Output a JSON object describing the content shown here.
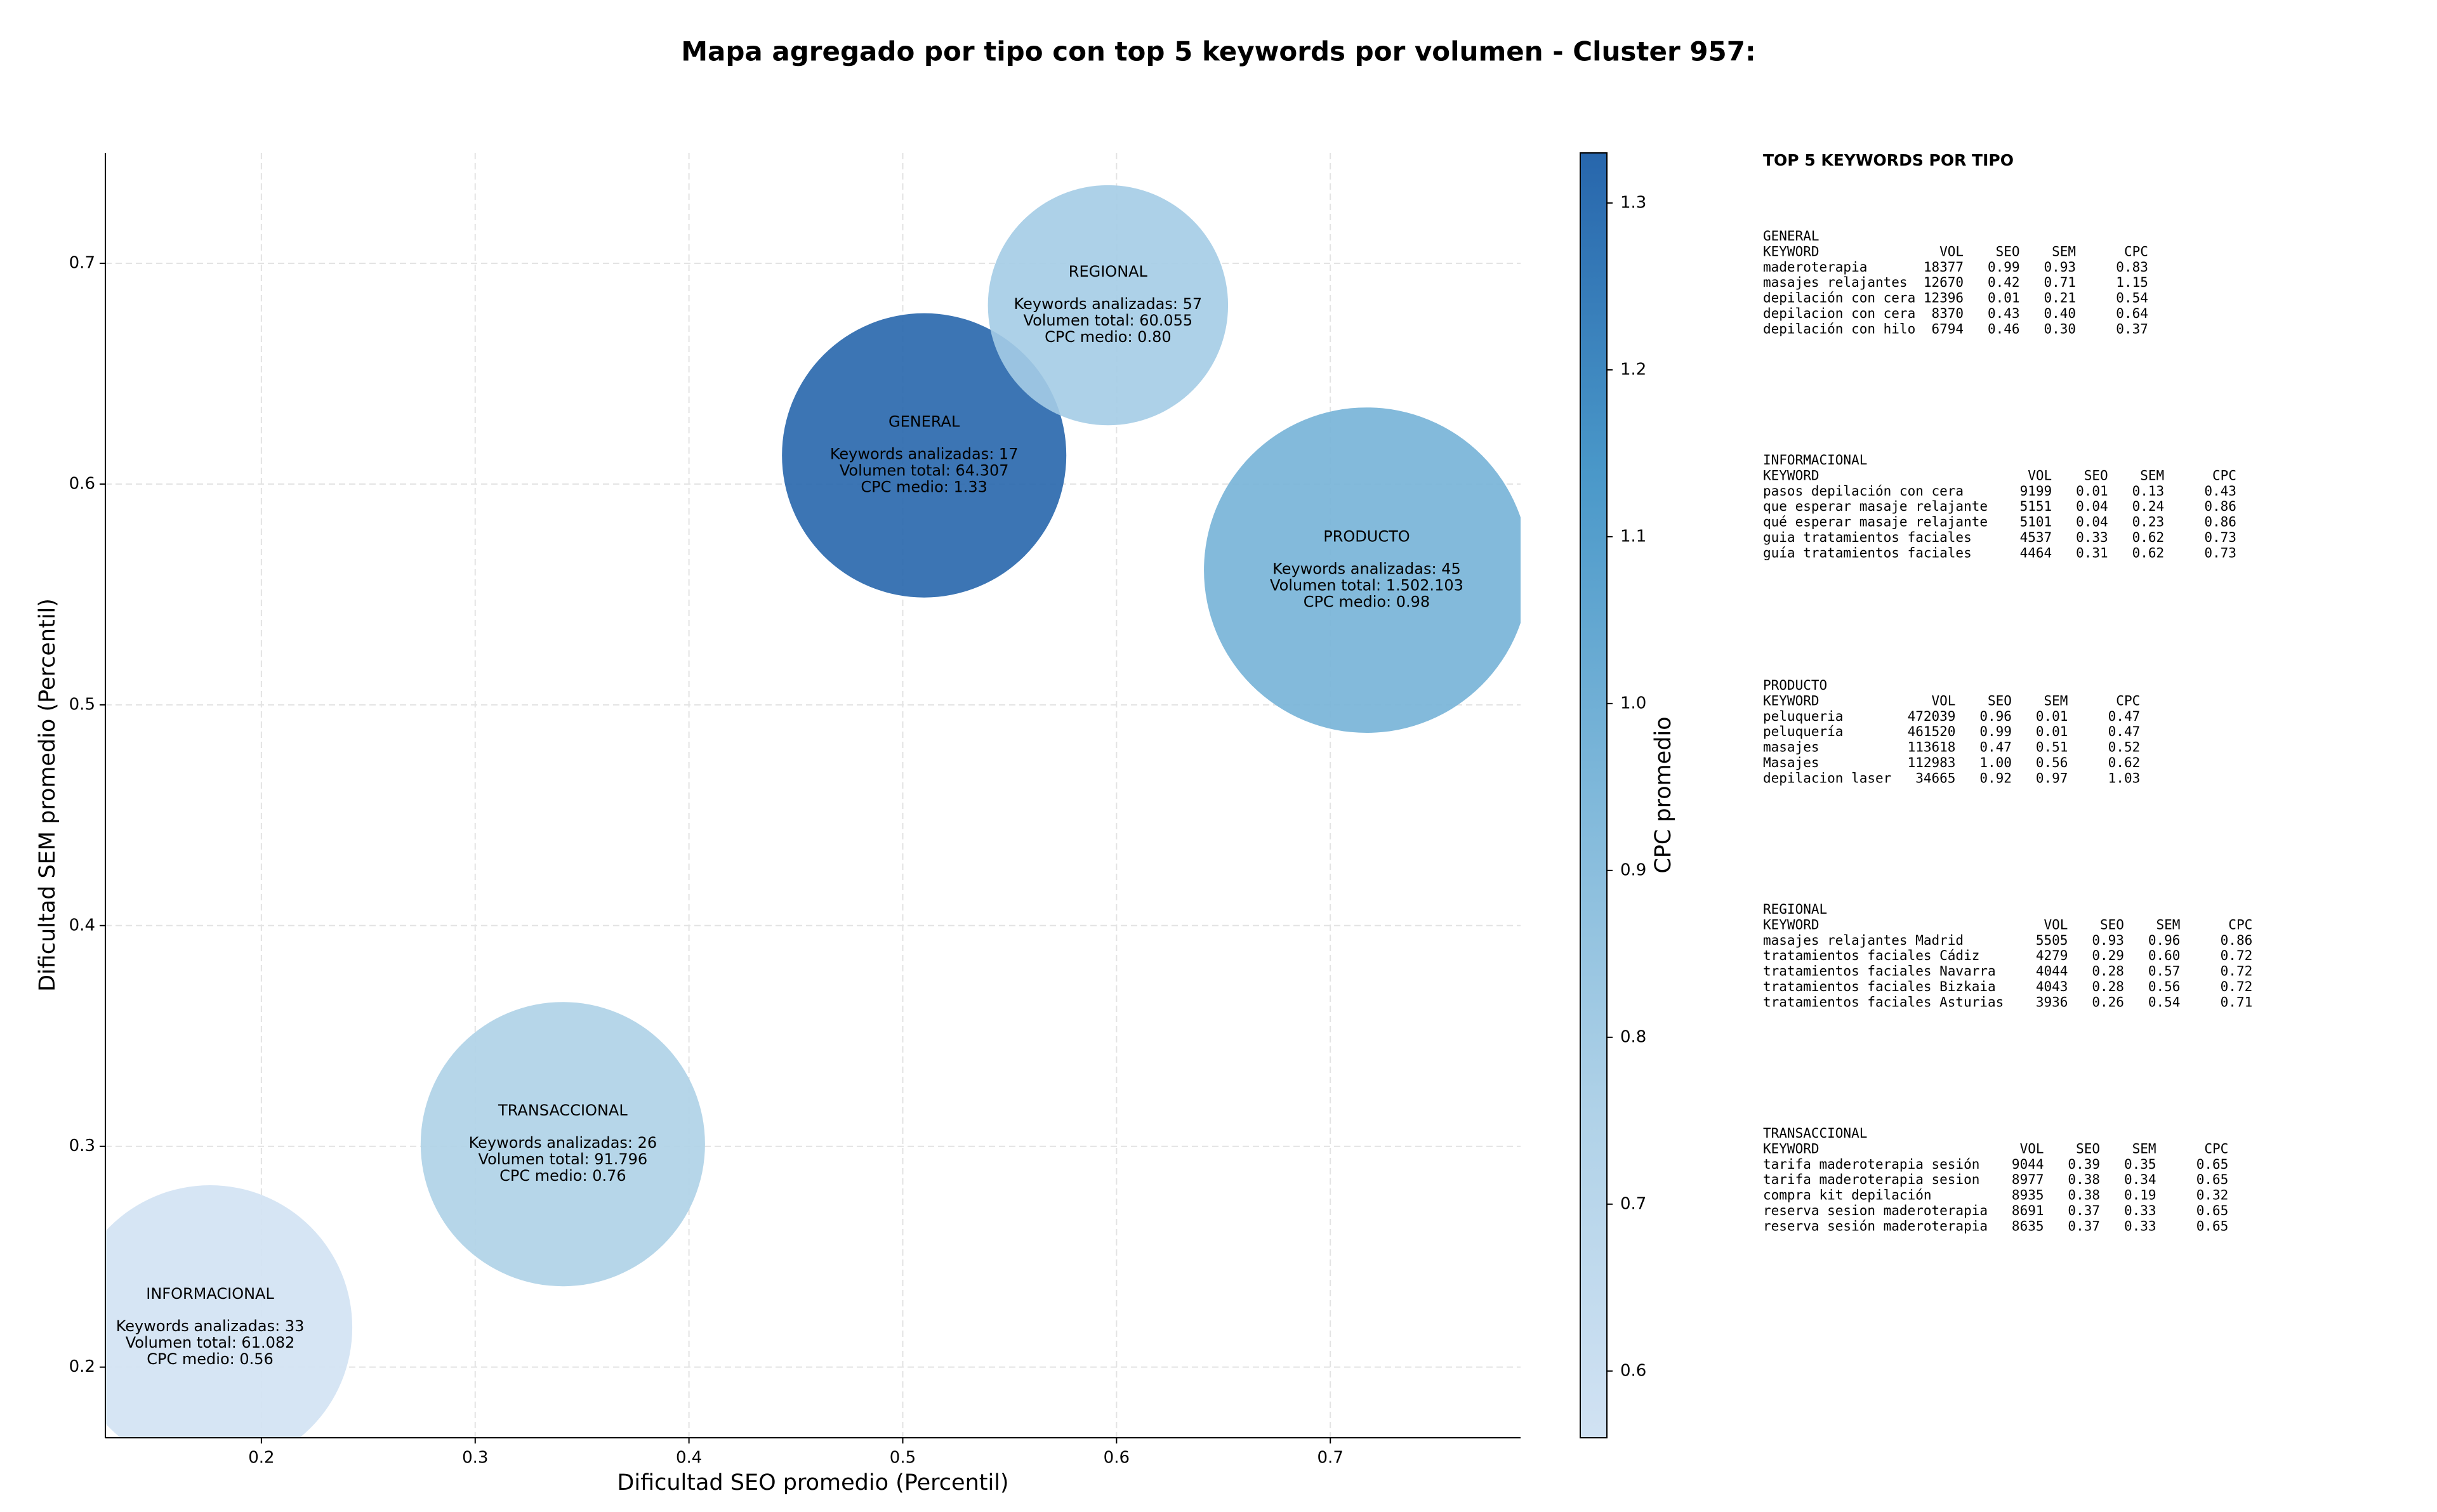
{
  "chart_data": {
    "type": "scatter",
    "title": "Mapa agregado por tipo con top 5 keywords por volumen - Cluster 957:",
    "xlabel": "Dificultad SEO promedio (Percentil)",
    "ylabel": "Dificultad SEM promedio (Percentil)",
    "xlim": [
      0.127,
      0.789
    ],
    "ylim": [
      0.168,
      0.75
    ],
    "xticks": [
      0.2,
      0.3,
      0.4,
      0.5,
      0.6,
      0.7
    ],
    "yticks": [
      0.2,
      0.3,
      0.4,
      0.5,
      0.6,
      0.7
    ],
    "grid": true,
    "point_labels": [
      "GENERAL",
      "REGIONAL",
      "PRODUCTO",
      "TRANSACCIONAL",
      "INFORMACIONAL"
    ],
    "x": [
      0.51,
      0.596,
      0.717,
      0.341,
      0.176
    ],
    "values": [
      0.613,
      0.681,
      0.561,
      0.301,
      0.218
    ],
    "sizes": [
      3000,
      2140,
      3930,
      3000,
      3000
    ],
    "color_values": [
      1.33,
      0.8,
      0.98,
      0.76,
      0.56
    ],
    "annotations": [
      [
        "Keywords analizadas: 17",
        "Volumen total: 64.307",
        "CPC medio: 1.33"
      ],
      [
        "Keywords analizadas: 57",
        "Volumen total: 60.055",
        "CPC medio: 0.80"
      ],
      [
        "Keywords analizadas: 45",
        "Volumen total: 1.502.103",
        "CPC medio: 0.98"
      ],
      [
        "Keywords analizadas: 26",
        "Volumen total: 91.796",
        "CPC medio: 0.76"
      ],
      [
        "Keywords analizadas: 33",
        "Volumen total: 61.082",
        "CPC medio: 0.56"
      ]
    ],
    "colorbar": {
      "label": "CPC promedio",
      "colormap": "Blues",
      "lim": [
        0.56,
        1.33
      ],
      "ticks": [
        0.6,
        0.7,
        0.8,
        0.9,
        {
          "value": 1,
          "label": "1.0"
        },
        1.1,
        1.2,
        1.3
      ]
    }
  },
  "side_panel": {
    "title": "TOP 5 KEYWORDS POR TIPO",
    "blocks": [
      {
        "name": "GENERAL",
        "lines": [
          "KEYWORD               VOL    SEO    SEM      CPC",
          "maderoterapia       18377   0.99   0.93     0.83",
          "masajes relajantes  12670   0.42   0.71     1.15",
          "depilación con cera 12396   0.01   0.21     0.54",
          "depilacion con cera  8370   0.43   0.40     0.64",
          "depilación con hilo  6794   0.46   0.30     0.37"
        ]
      },
      {
        "name": "INFORMACIONAL",
        "lines": [
          "KEYWORD                          VOL    SEO    SEM      CPC",
          "pasos depilación con cera       9199   0.01   0.13     0.43",
          "que esperar masaje relajante    5151   0.04   0.24     0.86",
          "qué esperar masaje relajante    5101   0.04   0.23     0.86",
          "guia tratamientos faciales      4537   0.33   0.62     0.73",
          "guía tratamientos faciales      4464   0.31   0.62     0.73"
        ]
      },
      {
        "name": "PRODUCTO",
        "lines": [
          "KEYWORD              VOL    SEO    SEM      CPC",
          "peluqueria        472039   0.96   0.01     0.47",
          "peluquería        461520   0.99   0.01     0.47",
          "masajes           113618   0.47   0.51     0.52",
          "Masajes           112983   1.00   0.56     0.62",
          "depilacion laser   34665   0.92   0.97     1.03"
        ]
      },
      {
        "name": "REGIONAL",
        "lines": [
          "KEYWORD                            VOL    SEO    SEM      CPC",
          "masajes relajantes Madrid         5505   0.93   0.96     0.86",
          "tratamientos faciales Cádiz       4279   0.29   0.60     0.72",
          "tratamientos faciales Navarra     4044   0.28   0.57     0.72",
          "tratamientos faciales Bizkaia     4043   0.28   0.56     0.72",
          "tratamientos faciales Asturias    3936   0.26   0.54     0.71"
        ]
      },
      {
        "name": "TRANSACCIONAL",
        "lines": [
          "KEYWORD                         VOL    SEO    SEM      CPC",
          "tarifa maderoterapia sesión    9044   0.39   0.35     0.65",
          "tarifa maderoterapia sesion    8977   0.38   0.34     0.65",
          "compra kit depilación          8935   0.38   0.19     0.32",
          "reserva sesion maderoterapia   8691   0.37   0.33     0.65",
          "reserva sesión maderoterapia   8635   0.37   0.33     0.65"
        ]
      }
    ]
  }
}
